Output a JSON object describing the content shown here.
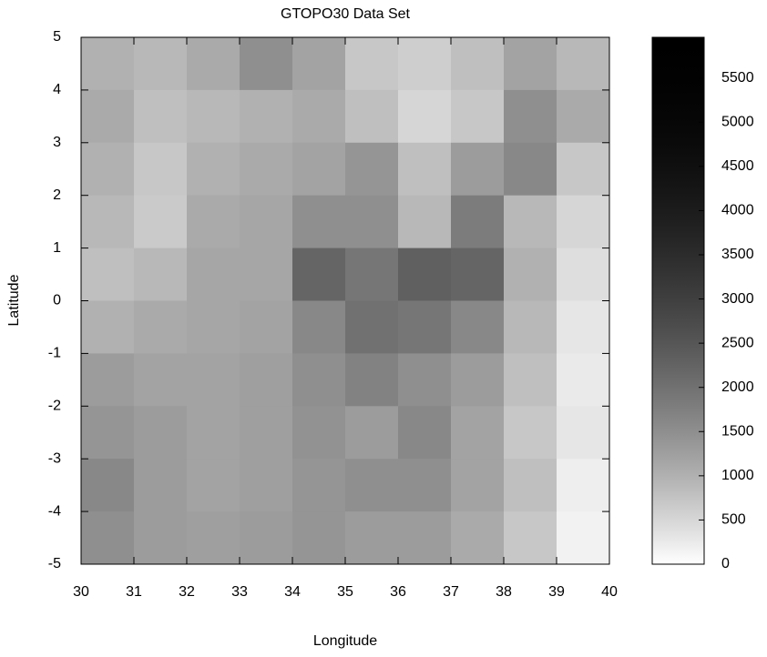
{
  "chart_data": {
    "type": "heatmap",
    "title": "GTOPO30 Data Set",
    "x_label": "Longitude",
    "y_label": "Latitude",
    "xbins": [
      30,
      31,
      32,
      33,
      34,
      35,
      36,
      37,
      38,
      39,
      40
    ],
    "ybins": [
      5,
      4,
      3,
      2,
      1,
      0,
      -1,
      -2,
      -3,
      -4,
      -5
    ],
    "z": [
      [
        1000,
        900,
        1100,
        1500,
        1200,
        700,
        600,
        800,
        1200,
        900
      ],
      [
        1100,
        800,
        900,
        1000,
        1100,
        800,
        500,
        700,
        1500,
        1100
      ],
      [
        1000,
        700,
        1000,
        1100,
        1200,
        1400,
        800,
        1300,
        1600,
        700
      ],
      [
        900,
        650,
        1100,
        1150,
        1500,
        1500,
        900,
        1800,
        900,
        500
      ],
      [
        800,
        900,
        1150,
        1150,
        2200,
        1900,
        2300,
        2200,
        1000,
        400
      ],
      [
        1000,
        1100,
        1150,
        1200,
        1600,
        2000,
        1900,
        1600,
        900,
        300
      ],
      [
        1300,
        1200,
        1200,
        1250,
        1500,
        1700,
        1500,
        1300,
        800,
        250
      ],
      [
        1400,
        1300,
        1200,
        1250,
        1450,
        1300,
        1600,
        1200,
        700,
        300
      ],
      [
        1600,
        1300,
        1200,
        1250,
        1400,
        1500,
        1500,
        1200,
        800,
        200
      ],
      [
        1500,
        1300,
        1250,
        1300,
        1400,
        1300,
        1300,
        1100,
        700,
        150
      ]
    ],
    "xlim": [
      30,
      40
    ],
    "xticks": [
      30,
      31,
      32,
      33,
      34,
      35,
      36,
      37,
      38,
      39,
      40
    ],
    "ylim": [
      -5,
      5
    ],
    "yticks": [
      -5,
      -4,
      -3,
      -2,
      -1,
      0,
      1,
      2,
      3,
      4,
      5
    ],
    "cblim": [
      0,
      5960
    ],
    "cbticks": [
      0,
      500,
      1000,
      1500,
      2000,
      2500,
      3000,
      3500,
      4000,
      4500,
      5000,
      5500
    ],
    "colors": [
      "#ffffff",
      "#000000"
    ]
  }
}
